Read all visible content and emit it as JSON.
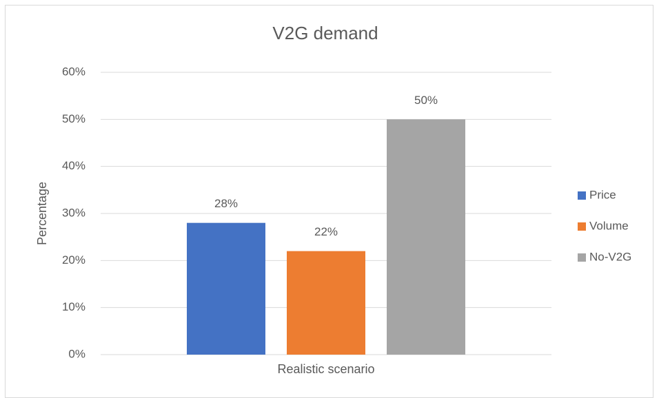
{
  "chart_data": {
    "type": "bar",
    "title": "V2G demand",
    "y_label": "Percentage",
    "categories": [
      "Realistic scenario"
    ],
    "series": [
      {
        "name": "Price",
        "color": "#4472c4",
        "values": [
          28
        ],
        "value_labels": [
          "28%"
        ]
      },
      {
        "name": "Volume",
        "color": "#ed7d31",
        "values": [
          22
        ],
        "value_labels": [
          "22%"
        ]
      },
      {
        "name": "No-V2G",
        "color": "#a5a5a5",
        "values": [
          50
        ],
        "value_labels": [
          "50%"
        ]
      }
    ],
    "ylim": [
      0,
      60
    ],
    "yticks": [
      {
        "value": 0,
        "label": "0%"
      },
      {
        "value": 10,
        "label": "10%"
      },
      {
        "value": 20,
        "label": "20%"
      },
      {
        "value": 30,
        "label": "30%"
      },
      {
        "value": 40,
        "label": "40%"
      },
      {
        "value": 50,
        "label": "50%"
      },
      {
        "value": 60,
        "label": "60%"
      }
    ],
    "grid": true,
    "legend": "right"
  }
}
